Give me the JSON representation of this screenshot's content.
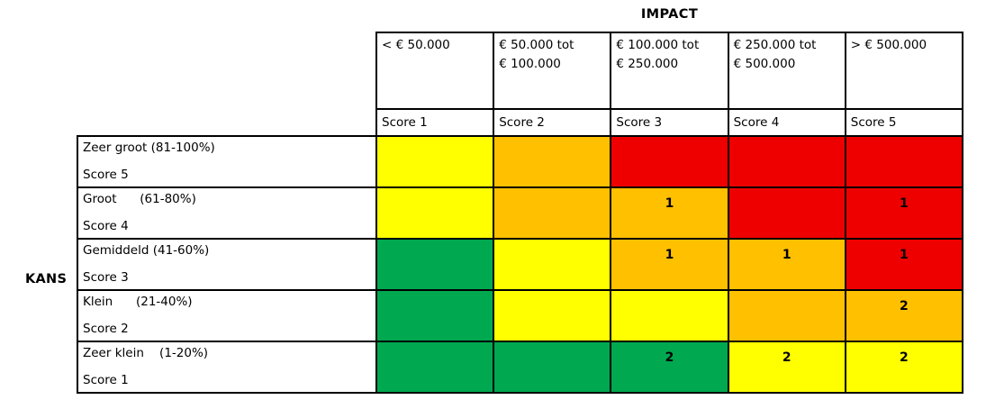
{
  "impact_axis": {
    "title": "IMPACT",
    "columns": [
      {
        "range": "< € 50.000",
        "score": "Score 1"
      },
      {
        "range": "€ 50.000 tot\n€ 100.000",
        "score": "Score 2"
      },
      {
        "range": "€ 100.000 tot\n€ 250.000",
        "score": "Score 3"
      },
      {
        "range": "€ 250.000 tot\n€ 500.000",
        "score": "Score 4"
      },
      {
        "range": "> € 500.000",
        "score": "Score 5"
      }
    ]
  },
  "kans_axis": {
    "title": "KANS",
    "rows": [
      {
        "label": "Zeer groot (81-100%)",
        "score": "Score 5"
      },
      {
        "label": "Groot      (61-80%)",
        "score": "Score 4"
      },
      {
        "label": "Gemiddeld (41-60%)",
        "score": "Score 3"
      },
      {
        "label": "Klein      (21-40%)",
        "score": "Score 2"
      },
      {
        "label": "Zeer klein    (1-20%)",
        "score": "Score 1"
      }
    ]
  },
  "matrix": {
    "colors": {
      "yellow": "#FFFF00",
      "orange": "#FFC000",
      "red": "#EE0000",
      "green": "#00A850"
    },
    "cells": [
      [
        {
          "color": "yellow",
          "value": ""
        },
        {
          "color": "orange",
          "value": ""
        },
        {
          "color": "red",
          "value": ""
        },
        {
          "color": "red",
          "value": ""
        },
        {
          "color": "red",
          "value": ""
        }
      ],
      [
        {
          "color": "yellow",
          "value": ""
        },
        {
          "color": "orange",
          "value": ""
        },
        {
          "color": "orange",
          "value": "1"
        },
        {
          "color": "red",
          "value": ""
        },
        {
          "color": "red",
          "value": "1"
        }
      ],
      [
        {
          "color": "green",
          "value": ""
        },
        {
          "color": "yellow",
          "value": ""
        },
        {
          "color": "orange",
          "value": "1"
        },
        {
          "color": "orange",
          "value": "1"
        },
        {
          "color": "red",
          "value": "1"
        }
      ],
      [
        {
          "color": "green",
          "value": ""
        },
        {
          "color": "yellow",
          "value": ""
        },
        {
          "color": "yellow",
          "value": ""
        },
        {
          "color": "orange",
          "value": ""
        },
        {
          "color": "orange",
          "value": "2"
        }
      ],
      [
        {
          "color": "green",
          "value": ""
        },
        {
          "color": "green",
          "value": ""
        },
        {
          "color": "green",
          "value": "2"
        },
        {
          "color": "yellow",
          "value": "2"
        },
        {
          "color": "yellow",
          "value": "2"
        }
      ]
    ]
  },
  "chart_data": {
    "type": "heatmap",
    "title": "",
    "xlabel": "IMPACT",
    "ylabel": "KANS",
    "x_categories": [
      "< € 50.000 (Score 1)",
      "€ 50.000 tot € 100.000 (Score 2)",
      "€ 100.000 tot € 250.000 (Score 3)",
      "€ 250.000 tot € 500.000 (Score 4)",
      "> € 500.000 (Score 5)"
    ],
    "y_categories": [
      "Zeer groot (81-100%) Score 5",
      "Groot (61-80%) Score 4",
      "Gemiddeld (41-60%) Score 3",
      "Klein (21-40%) Score 2",
      "Zeer klein (1-20%) Score 1"
    ],
    "cell_colors": [
      [
        "yellow",
        "orange",
        "red",
        "red",
        "red"
      ],
      [
        "yellow",
        "orange",
        "orange",
        "red",
        "red"
      ],
      [
        "green",
        "yellow",
        "orange",
        "orange",
        "red"
      ],
      [
        "green",
        "yellow",
        "yellow",
        "orange",
        "orange"
      ],
      [
        "green",
        "green",
        "green",
        "yellow",
        "yellow"
      ]
    ],
    "cell_values": [
      [
        null,
        null,
        null,
        null,
        null
      ],
      [
        null,
        null,
        1,
        null,
        1
      ],
      [
        null,
        null,
        1,
        1,
        1
      ],
      [
        null,
        null,
        null,
        null,
        2
      ],
      [
        null,
        null,
        2,
        2,
        2
      ]
    ],
    "color_hex": {
      "yellow": "#FFFF00",
      "orange": "#FFC000",
      "red": "#EE0000",
      "green": "#00A850"
    },
    "layout_hints": {
      "grid": "on",
      "legend": "none",
      "x_axis_position": "top",
      "y_axis_position": "left"
    }
  }
}
